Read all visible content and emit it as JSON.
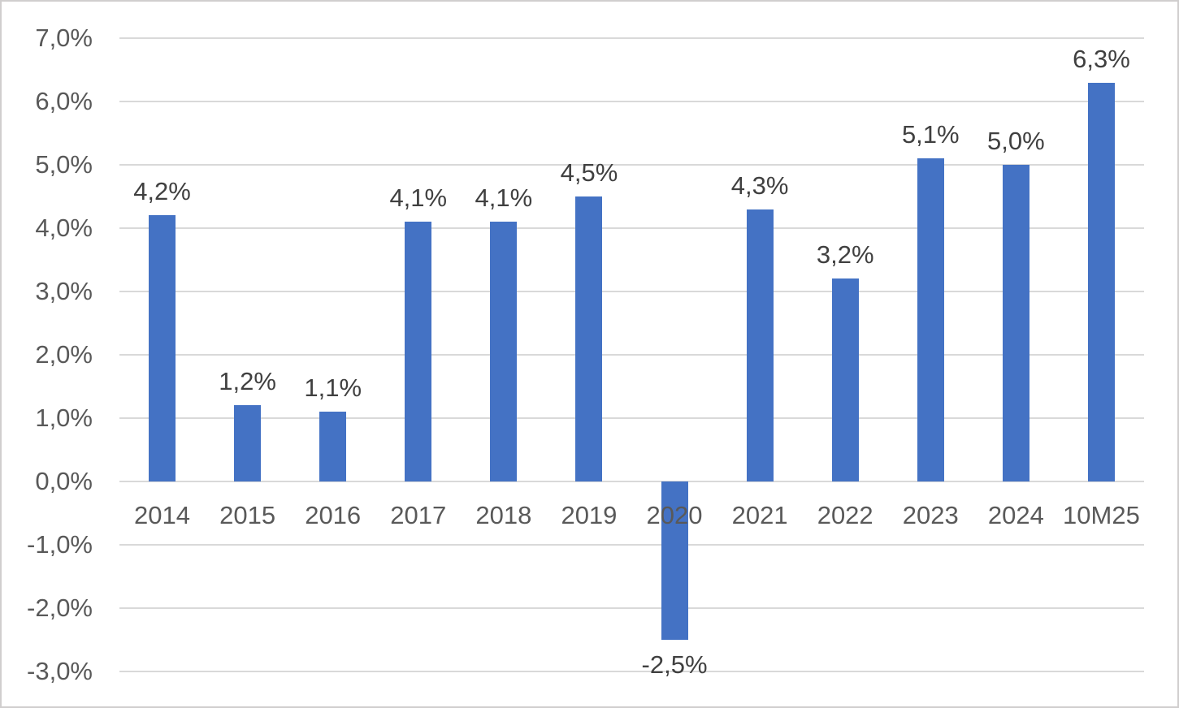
{
  "chart_data": {
    "type": "bar",
    "categories": [
      "2014",
      "2015",
      "2016",
      "2017",
      "2018",
      "2019",
      "2020",
      "2021",
      "2022",
      "2023",
      "2024",
      "10M25"
    ],
    "values": [
      4.2,
      1.2,
      1.1,
      4.1,
      4.1,
      4.5,
      -2.5,
      4.3,
      3.2,
      5.1,
      5.0,
      6.3
    ],
    "data_labels": [
      "4,2%",
      "1,2%",
      "1,1%",
      "4,1%",
      "4,1%",
      "4,5%",
      "-2,5%",
      "4,3%",
      "3,2%",
      "5,1%",
      "5,0%",
      "6,3%"
    ],
    "xlabel": "",
    "ylabel": "",
    "ylim": [
      -3,
      7
    ],
    "y_axis": {
      "tick_values": [
        7,
        6,
        5,
        4,
        3,
        2,
        1,
        0,
        -1,
        -2,
        -3
      ],
      "tick_labels": [
        "7,0%",
        "6,0%",
        "5,0%",
        "4,0%",
        "3,0%",
        "2,0%",
        "1,0%",
        "0,0%",
        "-1,0%",
        "-2,0%",
        "-3,0%"
      ],
      "number_format": "percent-comma-decimal"
    },
    "grid": true,
    "legend": "none",
    "colors": {
      "bar": "#4472C4",
      "gridline": "#D9D9D9",
      "axis_text": "#595959",
      "data_label_text": "#404040",
      "background": "#FFFFFF",
      "frame_border": "#D0CECE"
    }
  }
}
